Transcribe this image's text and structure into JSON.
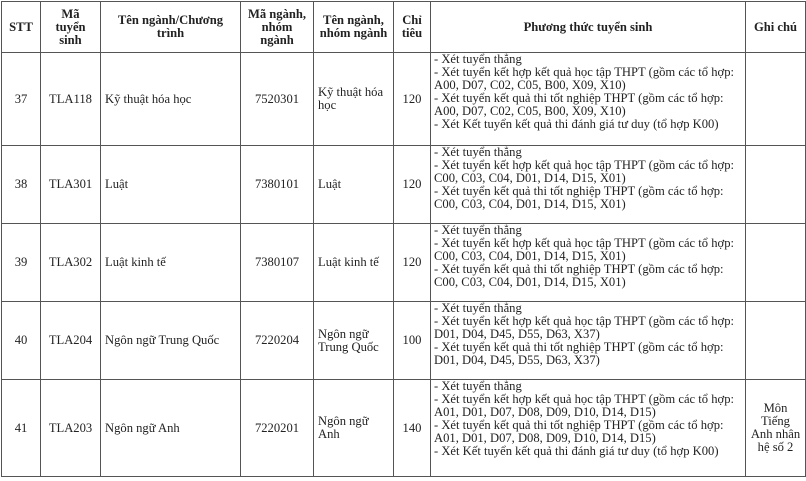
{
  "table": {
    "header": [
      "STT",
      "Mã tuyển sinh",
      "Tên ngành/Chương trình",
      "Mã ngành, nhóm ngành",
      "Tên ngành, nhóm ngành",
      "Chỉ tiêu",
      "Phương thức tuyển sinh",
      "Ghi chú"
    ],
    "rows": [
      {
        "stt": 37,
        "code": "TLA118",
        "program": "Kỹ thuật hóa học",
        "major_code": "7520301",
        "major_name": "Kỹ thuật hóa học",
        "quota": 120,
        "methods": [
          "- Xét tuyển thẳng",
          "- Xét tuyển kết hợp kết quả học tập THPT (gồm các tổ hợp: A00, D07, C02, C05, B00, X09, X10)",
          "- Xét tuyển kết quả thi tốt nghiệp THPT (gồm các tổ hợp: A00, D07, C02, C05, B00, X09, X10)",
          "- Xét Kết tuyển kết quả thi đánh giá tư duy (tổ hợp K00)"
        ]
      },
      {
        "stt": 38,
        "code": "TLA301",
        "program": "Luật",
        "major_code": "7380101",
        "major_name": "Luật",
        "quota": 120,
        "methods": [
          "- Xét tuyển thẳng",
          "- Xét tuyển kết hợp kết quả học tập THPT (gồm các tổ hợp: C00, C03, C04, D01, D14, D15, X01)",
          "- Xét tuyển kết quả thi tốt nghiệp THPT (gồm các tổ hợp: C00, C03, C04, D01, D14, D15, X01)"
        ]
      },
      {
        "stt": 39,
        "code": "TLA302",
        "program": "Luật kinh tế",
        "major_code": "7380107",
        "major_name": "Luật kinh tế",
        "quota": 120,
        "methods": [
          "- Xét tuyển thẳng",
          "- Xét tuyển kết hợp kết quả học tập THPT (gồm các tổ hợp: C00, C03, C04, D01, D14, D15, X01)",
          "- Xét tuyển kết quả thi tốt nghiệp THPT (gồm các tổ hợp: C00, C03, C04, D01, D14, D15, X01)"
        ]
      },
      {
        "stt": 40,
        "code": "TLA204",
        "program": "Ngôn ngữ Trung Quốc",
        "major_code": "7220204",
        "major_name": "Ngôn ngữ Trung Quốc",
        "quota": 100,
        "methods": [
          "- Xét tuyển thẳng",
          "- Xét tuyển kết hợp kết quả học tập THPT (gồm các tổ hợp: D01, D04, D45, D55, D63, X37)",
          "- Xét tuyển kết quả thi tốt nghiệp THPT (gồm các tổ hợp: D01, D04, D45, D55, D63, X37)"
        ]
      },
      {
        "stt": 41,
        "code": "TLA203",
        "program": "Ngôn ngữ Anh",
        "major_code": "7220201",
        "major_name": "Ngôn ngữ Anh",
        "quota": 140,
        "methods": [
          "- Xét tuyển thẳng",
          "- Xét tuyển kết hợp kết quả học tập THPT (gồm các tổ hợp: A01, D01, D07, D08, D09, D10, D14, D15)",
          "- Xét tuyển kết quả thi tốt nghiệp THPT (gồm các tổ hợp: A01, D01, D07, D08, D09, D10, D14, D15)",
          "- Xét Kết tuyển kết quả thi đánh giá tư duy (tổ hợp K00)"
        ],
        "note": "Môn Tiếng Anh nhân hệ số 2"
      }
    ]
  }
}
